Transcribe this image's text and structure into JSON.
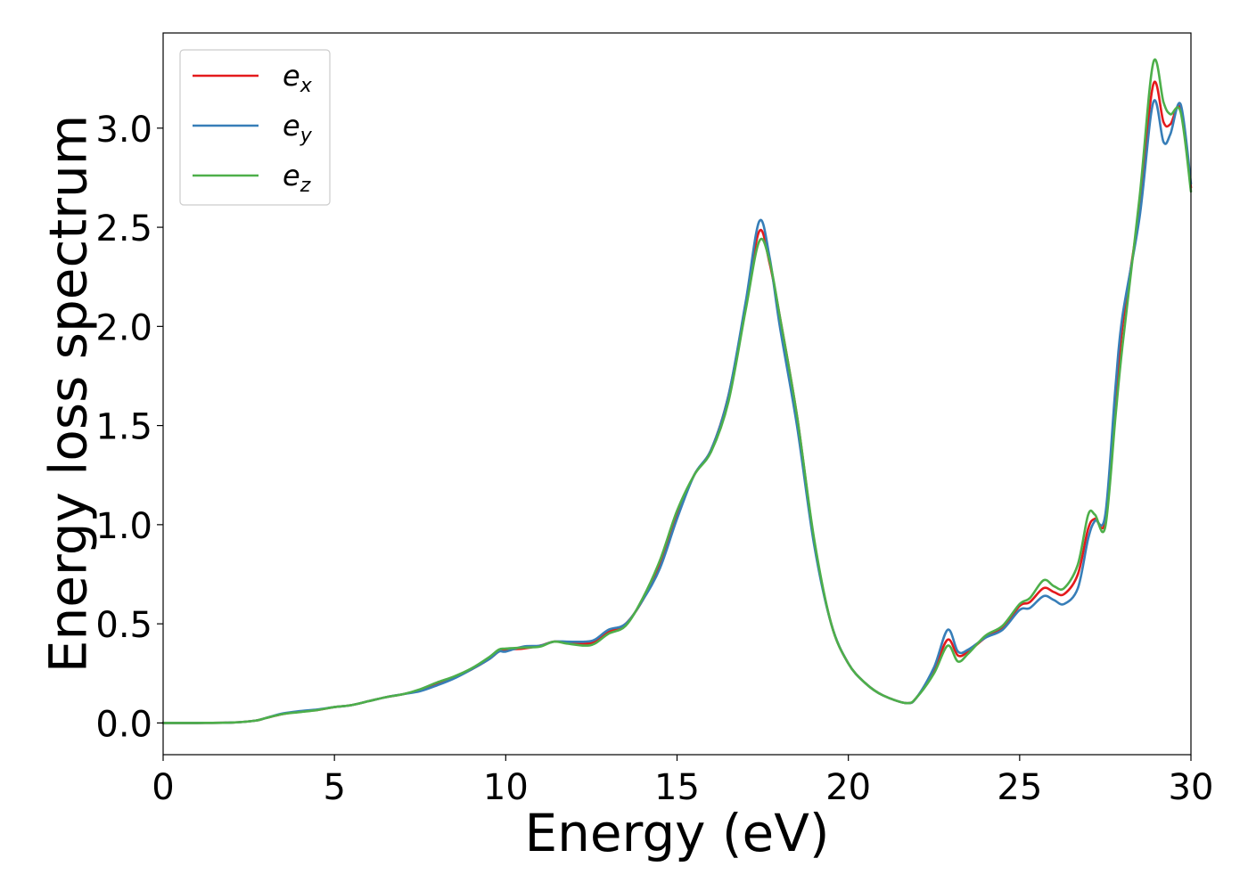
{
  "chart_data": {
    "type": "line",
    "title": "",
    "xlabel": "Energy (eV)",
    "ylabel": "Energy loss spectrum",
    "xlim": [
      0,
      30
    ],
    "ylim": [
      -0.16,
      3.48
    ],
    "xticks": [
      0,
      5,
      10,
      15,
      20,
      25,
      30
    ],
    "xtick_labels": [
      "0",
      "5",
      "10",
      "15",
      "20",
      "25",
      "30"
    ],
    "yticks": [
      0.0,
      0.5,
      1.0,
      1.5,
      2.0,
      2.5,
      3.0
    ],
    "ytick_labels": [
      "0.0",
      "0.5",
      "1.0",
      "1.5",
      "2.0",
      "2.5",
      "3.0"
    ],
    "grid": false,
    "legend_position": "top-left",
    "series": [
      {
        "name": "e_x",
        "legend_base": "e",
        "legend_sub": "x",
        "color": "#e41a1c",
        "points": [
          [
            0,
            0
          ],
          [
            1,
            0
          ],
          [
            2,
            0.002
          ],
          [
            2.7,
            0.012
          ],
          [
            3,
            0.025
          ],
          [
            3.5,
            0.045
          ],
          [
            4,
            0.058
          ],
          [
            4.5,
            0.065
          ],
          [
            5,
            0.08
          ],
          [
            5.5,
            0.09
          ],
          [
            6,
            0.11
          ],
          [
            6.5,
            0.13
          ],
          [
            7,
            0.145
          ],
          [
            7.5,
            0.165
          ],
          [
            8,
            0.2
          ],
          [
            8.5,
            0.23
          ],
          [
            9,
            0.27
          ],
          [
            9.5,
            0.32
          ],
          [
            9.8,
            0.36
          ],
          [
            10,
            0.37
          ],
          [
            10.5,
            0.375
          ],
          [
            11,
            0.39
          ],
          [
            11.4,
            0.41
          ],
          [
            11.8,
            0.405
          ],
          [
            12.3,
            0.4
          ],
          [
            12.6,
            0.41
          ],
          [
            13,
            0.46
          ],
          [
            13.5,
            0.5
          ],
          [
            14,
            0.62
          ],
          [
            14.5,
            0.8
          ],
          [
            15,
            1.05
          ],
          [
            15.5,
            1.25
          ],
          [
            16,
            1.38
          ],
          [
            16.5,
            1.65
          ],
          [
            17,
            2.1
          ],
          [
            17.4,
            2.48
          ],
          [
            17.7,
            2.32
          ],
          [
            18,
            2.05
          ],
          [
            18.5,
            1.55
          ],
          [
            19,
            0.92
          ],
          [
            19.5,
            0.5
          ],
          [
            20,
            0.3
          ],
          [
            20.5,
            0.2
          ],
          [
            21,
            0.14
          ],
          [
            21.7,
            0.1
          ],
          [
            22,
            0.13
          ],
          [
            22.5,
            0.27
          ],
          [
            22.9,
            0.42
          ],
          [
            23.2,
            0.34
          ],
          [
            23.5,
            0.36
          ],
          [
            24,
            0.43
          ],
          [
            24.5,
            0.48
          ],
          [
            25,
            0.59
          ],
          [
            25.3,
            0.61
          ],
          [
            25.7,
            0.68
          ],
          [
            26,
            0.66
          ],
          [
            26.3,
            0.65
          ],
          [
            26.7,
            0.75
          ],
          [
            27,
            0.98
          ],
          [
            27.2,
            1.03
          ],
          [
            27.5,
            1.02
          ],
          [
            27.8,
            1.6
          ],
          [
            28,
            2.0
          ],
          [
            28.5,
            2.6
          ],
          [
            28.9,
            3.22
          ],
          [
            29.2,
            3.03
          ],
          [
            29.4,
            3.02
          ],
          [
            29.7,
            3.1
          ],
          [
            30,
            2.7
          ]
        ]
      },
      {
        "name": "e_y",
        "legend_base": "e",
        "legend_sub": "y",
        "color": "#377eb8",
        "points": [
          [
            0,
            0
          ],
          [
            1,
            0
          ],
          [
            2,
            0.002
          ],
          [
            2.7,
            0.012
          ],
          [
            3,
            0.025
          ],
          [
            3.5,
            0.048
          ],
          [
            4,
            0.06
          ],
          [
            4.5,
            0.068
          ],
          [
            5,
            0.08
          ],
          [
            5.5,
            0.09
          ],
          [
            6,
            0.11
          ],
          [
            6.5,
            0.13
          ],
          [
            7,
            0.145
          ],
          [
            7.5,
            0.16
          ],
          [
            8,
            0.19
          ],
          [
            8.5,
            0.225
          ],
          [
            9,
            0.27
          ],
          [
            9.5,
            0.32
          ],
          [
            9.8,
            0.36
          ],
          [
            10,
            0.36
          ],
          [
            10.5,
            0.385
          ],
          [
            11,
            0.39
          ],
          [
            11.4,
            0.41
          ],
          [
            11.8,
            0.41
          ],
          [
            12.3,
            0.41
          ],
          [
            12.6,
            0.42
          ],
          [
            13,
            0.47
          ],
          [
            13.5,
            0.5
          ],
          [
            14,
            0.62
          ],
          [
            14.5,
            0.78
          ],
          [
            15,
            1.03
          ],
          [
            15.5,
            1.25
          ],
          [
            16,
            1.38
          ],
          [
            16.5,
            1.65
          ],
          [
            17,
            2.12
          ],
          [
            17.4,
            2.53
          ],
          [
            17.7,
            2.35
          ],
          [
            18,
            2.0
          ],
          [
            18.5,
            1.5
          ],
          [
            19,
            0.9
          ],
          [
            19.5,
            0.5
          ],
          [
            20,
            0.3
          ],
          [
            20.5,
            0.2
          ],
          [
            21,
            0.14
          ],
          [
            21.7,
            0.1
          ],
          [
            22,
            0.13
          ],
          [
            22.5,
            0.28
          ],
          [
            22.9,
            0.47
          ],
          [
            23.2,
            0.36
          ],
          [
            23.5,
            0.37
          ],
          [
            24,
            0.43
          ],
          [
            24.5,
            0.47
          ],
          [
            25,
            0.57
          ],
          [
            25.3,
            0.58
          ],
          [
            25.7,
            0.64
          ],
          [
            26,
            0.62
          ],
          [
            26.3,
            0.6
          ],
          [
            26.7,
            0.68
          ],
          [
            27,
            0.93
          ],
          [
            27.2,
            1.02
          ],
          [
            27.5,
            1.05
          ],
          [
            27.8,
            1.7
          ],
          [
            28,
            2.05
          ],
          [
            28.5,
            2.55
          ],
          [
            28.9,
            3.13
          ],
          [
            29.2,
            2.93
          ],
          [
            29.4,
            2.97
          ],
          [
            29.7,
            3.12
          ],
          [
            30,
            2.72
          ]
        ]
      },
      {
        "name": "e_z",
        "legend_base": "e",
        "legend_sub": "z",
        "color": "#4daf4a",
        "points": [
          [
            0,
            0
          ],
          [
            1,
            0
          ],
          [
            2,
            0.002
          ],
          [
            2.7,
            0.012
          ],
          [
            3,
            0.025
          ],
          [
            3.5,
            0.045
          ],
          [
            4,
            0.055
          ],
          [
            4.5,
            0.065
          ],
          [
            5,
            0.08
          ],
          [
            5.5,
            0.09
          ],
          [
            6,
            0.11
          ],
          [
            6.5,
            0.13
          ],
          [
            7,
            0.145
          ],
          [
            7.5,
            0.17
          ],
          [
            8,
            0.205
          ],
          [
            8.5,
            0.235
          ],
          [
            9,
            0.275
          ],
          [
            9.5,
            0.33
          ],
          [
            9.8,
            0.37
          ],
          [
            10,
            0.375
          ],
          [
            10.5,
            0.38
          ],
          [
            11,
            0.385
          ],
          [
            11.4,
            0.41
          ],
          [
            11.8,
            0.4
          ],
          [
            12.3,
            0.39
          ],
          [
            12.6,
            0.4
          ],
          [
            13,
            0.45
          ],
          [
            13.5,
            0.49
          ],
          [
            14,
            0.63
          ],
          [
            14.5,
            0.82
          ],
          [
            15,
            1.07
          ],
          [
            15.5,
            1.25
          ],
          [
            16,
            1.37
          ],
          [
            16.5,
            1.62
          ],
          [
            17,
            2.08
          ],
          [
            17.4,
            2.43
          ],
          [
            17.7,
            2.33
          ],
          [
            18,
            2.05
          ],
          [
            18.5,
            1.55
          ],
          [
            19,
            0.93
          ],
          [
            19.5,
            0.5
          ],
          [
            20,
            0.3
          ],
          [
            20.5,
            0.2
          ],
          [
            21,
            0.14
          ],
          [
            21.7,
            0.1
          ],
          [
            22,
            0.13
          ],
          [
            22.5,
            0.25
          ],
          [
            22.9,
            0.39
          ],
          [
            23.2,
            0.31
          ],
          [
            23.5,
            0.35
          ],
          [
            24,
            0.44
          ],
          [
            24.5,
            0.49
          ],
          [
            25,
            0.6
          ],
          [
            25.3,
            0.63
          ],
          [
            25.7,
            0.72
          ],
          [
            26,
            0.69
          ],
          [
            26.3,
            0.68
          ],
          [
            26.7,
            0.8
          ],
          [
            27,
            1.05
          ],
          [
            27.2,
            1.05
          ],
          [
            27.5,
            0.99
          ],
          [
            27.8,
            1.55
          ],
          [
            28,
            1.9
          ],
          [
            28.5,
            2.65
          ],
          [
            28.9,
            3.33
          ],
          [
            29.2,
            3.13
          ],
          [
            29.4,
            3.07
          ],
          [
            29.7,
            3.08
          ],
          [
            30,
            2.68
          ]
        ]
      }
    ]
  }
}
